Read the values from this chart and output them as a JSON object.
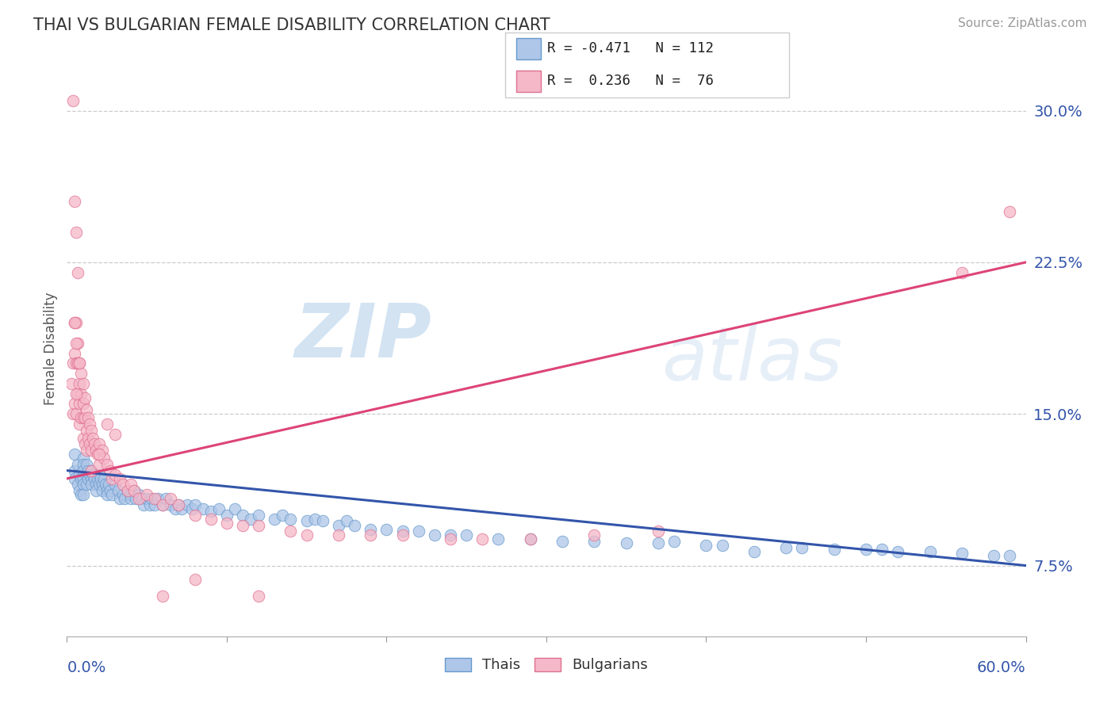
{
  "title": "THAI VS BULGARIAN FEMALE DISABILITY CORRELATION CHART",
  "source": "Source: ZipAtlas.com",
  "ylabel": "Female Disability",
  "yticks": [
    7.5,
    15.0,
    22.5,
    30.0
  ],
  "ytick_labels": [
    "7.5%",
    "15.0%",
    "22.5%",
    "30.0%"
  ],
  "xlim": [
    0.0,
    0.6
  ],
  "ylim": [
    0.04,
    0.325
  ],
  "thai_color": "#aec6e8",
  "thai_edge_color": "#6699cc",
  "bulgarian_color": "#f5b8c8",
  "bulgarian_edge_color": "#e07090",
  "thai_line_color": "#3355aa",
  "bulgarian_line_color": "#dd4477",
  "thai_R": -0.471,
  "thai_N": 112,
  "bulgarian_R": 0.236,
  "bulgarian_N": 76,
  "watermark_zip": "ZIP",
  "watermark_atlas": "atlas",
  "thai_line_x0": 0.0,
  "thai_line_y0": 0.122,
  "thai_line_x1": 0.6,
  "thai_line_y1": 0.075,
  "bulg_line_x0": 0.0,
  "bulg_line_y0": 0.118,
  "bulg_line_x1": 0.6,
  "bulg_line_y1": 0.225,
  "thai_x": [
    0.005,
    0.005,
    0.005,
    0.007,
    0.007,
    0.008,
    0.008,
    0.009,
    0.009,
    0.01,
    0.01,
    0.01,
    0.01,
    0.01,
    0.01,
    0.012,
    0.012,
    0.012,
    0.013,
    0.013,
    0.014,
    0.015,
    0.015,
    0.015,
    0.016,
    0.017,
    0.018,
    0.018,
    0.019,
    0.02,
    0.02,
    0.021,
    0.022,
    0.022,
    0.023,
    0.024,
    0.025,
    0.025,
    0.026,
    0.027,
    0.028,
    0.03,
    0.032,
    0.033,
    0.035,
    0.036,
    0.038,
    0.04,
    0.04,
    0.042,
    0.043,
    0.045,
    0.047,
    0.048,
    0.05,
    0.052,
    0.053,
    0.055,
    0.057,
    0.06,
    0.062,
    0.065,
    0.068,
    0.07,
    0.072,
    0.075,
    0.078,
    0.08,
    0.085,
    0.09,
    0.095,
    0.1,
    0.105,
    0.11,
    0.115,
    0.12,
    0.13,
    0.135,
    0.14,
    0.15,
    0.155,
    0.16,
    0.17,
    0.175,
    0.18,
    0.19,
    0.2,
    0.21,
    0.22,
    0.23,
    0.24,
    0.25,
    0.27,
    0.29,
    0.31,
    0.33,
    0.37,
    0.41,
    0.45,
    0.48,
    0.5,
    0.52,
    0.54,
    0.56,
    0.58,
    0.59,
    0.35,
    0.4,
    0.46,
    0.51,
    0.43,
    0.38
  ],
  "thai_y": [
    0.13,
    0.122,
    0.118,
    0.125,
    0.115,
    0.12,
    0.112,
    0.118,
    0.11,
    0.128,
    0.125,
    0.122,
    0.118,
    0.115,
    0.11,
    0.125,
    0.12,
    0.115,
    0.122,
    0.118,
    0.12,
    0.122,
    0.118,
    0.115,
    0.12,
    0.118,
    0.115,
    0.112,
    0.118,
    0.12,
    0.115,
    0.118,
    0.115,
    0.112,
    0.118,
    0.115,
    0.112,
    0.11,
    0.115,
    0.112,
    0.11,
    0.115,
    0.112,
    0.108,
    0.11,
    0.108,
    0.112,
    0.11,
    0.108,
    0.112,
    0.108,
    0.11,
    0.108,
    0.105,
    0.108,
    0.105,
    0.108,
    0.105,
    0.108,
    0.105,
    0.108,
    0.105,
    0.103,
    0.105,
    0.103,
    0.105,
    0.103,
    0.105,
    0.103,
    0.102,
    0.103,
    0.1,
    0.103,
    0.1,
    0.098,
    0.1,
    0.098,
    0.1,
    0.098,
    0.097,
    0.098,
    0.097,
    0.095,
    0.097,
    0.095,
    0.093,
    0.093,
    0.092,
    0.092,
    0.09,
    0.09,
    0.09,
    0.088,
    0.088,
    0.087,
    0.087,
    0.086,
    0.085,
    0.084,
    0.083,
    0.083,
    0.082,
    0.082,
    0.081,
    0.08,
    0.08,
    0.086,
    0.085,
    0.084,
    0.083,
    0.082,
    0.087
  ],
  "bulg_x": [
    0.003,
    0.004,
    0.004,
    0.005,
    0.005,
    0.005,
    0.006,
    0.006,
    0.006,
    0.007,
    0.007,
    0.007,
    0.008,
    0.008,
    0.008,
    0.008,
    0.009,
    0.009,
    0.009,
    0.01,
    0.01,
    0.01,
    0.01,
    0.011,
    0.011,
    0.011,
    0.012,
    0.012,
    0.012,
    0.013,
    0.013,
    0.014,
    0.014,
    0.015,
    0.015,
    0.015,
    0.016,
    0.017,
    0.018,
    0.019,
    0.02,
    0.02,
    0.022,
    0.023,
    0.025,
    0.027,
    0.028,
    0.03,
    0.033,
    0.035,
    0.038,
    0.04,
    0.042,
    0.045,
    0.05,
    0.055,
    0.06,
    0.065,
    0.07,
    0.08,
    0.09,
    0.1,
    0.11,
    0.12,
    0.14,
    0.15,
    0.17,
    0.19,
    0.21,
    0.24,
    0.26,
    0.29,
    0.33,
    0.37,
    0.56,
    0.59
  ],
  "bulg_y": [
    0.165,
    0.175,
    0.15,
    0.195,
    0.18,
    0.155,
    0.195,
    0.175,
    0.15,
    0.185,
    0.175,
    0.16,
    0.175,
    0.165,
    0.155,
    0.145,
    0.17,
    0.16,
    0.148,
    0.165,
    0.155,
    0.148,
    0.138,
    0.158,
    0.148,
    0.135,
    0.152,
    0.142,
    0.132,
    0.148,
    0.138,
    0.145,
    0.135,
    0.142,
    0.132,
    0.122,
    0.138,
    0.135,
    0.132,
    0.13,
    0.135,
    0.125,
    0.132,
    0.128,
    0.125,
    0.122,
    0.118,
    0.12,
    0.118,
    0.115,
    0.112,
    0.115,
    0.112,
    0.108,
    0.11,
    0.108,
    0.105,
    0.108,
    0.105,
    0.1,
    0.098,
    0.096,
    0.095,
    0.095,
    0.092,
    0.09,
    0.09,
    0.09,
    0.09,
    0.088,
    0.088,
    0.088,
    0.09,
    0.092,
    0.22,
    0.25
  ],
  "bulg_outliers_x": [
    0.004,
    0.005,
    0.006,
    0.007,
    0.005,
    0.006,
    0.008,
    0.006,
    0.025,
    0.03,
    0.02,
    0.06,
    0.08,
    0.12
  ],
  "bulg_outliers_y": [
    0.305,
    0.255,
    0.24,
    0.22,
    0.195,
    0.185,
    0.175,
    0.16,
    0.145,
    0.14,
    0.13,
    0.06,
    0.068,
    0.06
  ]
}
